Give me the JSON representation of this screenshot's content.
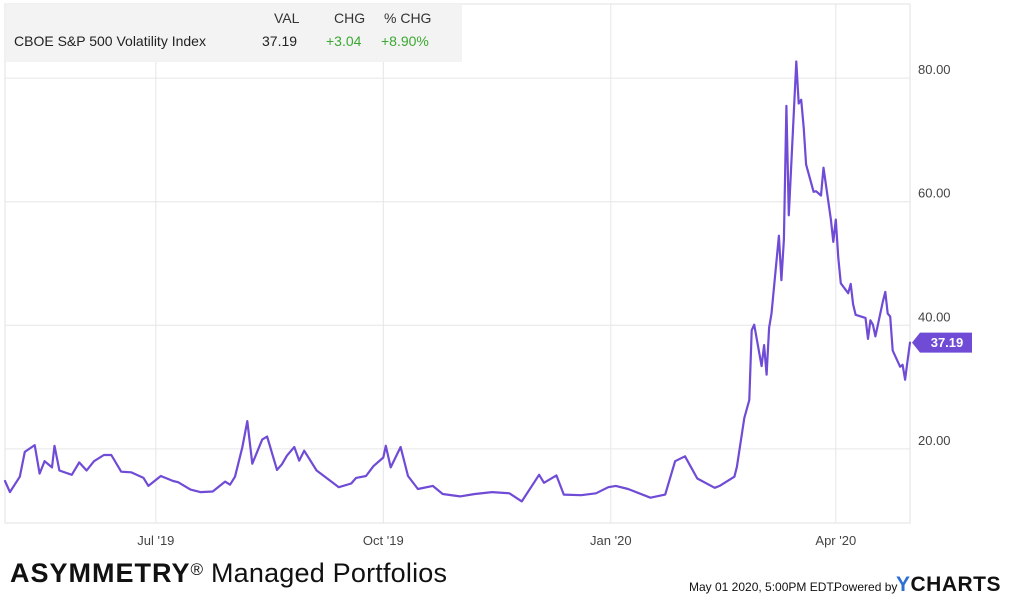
{
  "legend": {
    "headers": {
      "val": "VAL",
      "chg": "CHG",
      "pct": "% CHG"
    },
    "series_name": "CBOE S&P 500 Volatility Index",
    "val": "37.19",
    "chg": "+3.04",
    "pct": "+8.90%"
  },
  "footer": {
    "brand_bold": "ASYMMETRY",
    "brand_reg": "®",
    "brand_rest": " Managed Portfolios",
    "timestamp": "May 01 2020, 5:00PM EDT.",
    "powered_by": "Powered by",
    "ycharts_y": "Y",
    "ycharts_rest": "CHARTS"
  },
  "colors": {
    "line": "#6f4bd6",
    "positive": "#3ba831",
    "grid": "#e6e6e6"
  },
  "chart_data": {
    "type": "line",
    "title": "",
    "xlabel": "",
    "ylabel": "",
    "ylim": [
      8,
      92
    ],
    "yticks": [
      20,
      40,
      60,
      80
    ],
    "ytick_labels": [
      "20.00",
      "40.00",
      "60.00",
      "80.00"
    ],
    "xticks": [
      {
        "date": "2019-07-01",
        "label": "Jul '19"
      },
      {
        "date": "2019-10-01",
        "label": "Oct '19"
      },
      {
        "date": "2020-01-01",
        "label": "Jan '20"
      },
      {
        "date": "2020-04-01",
        "label": "Apr '20"
      }
    ],
    "x_range": [
      "2019-05-01",
      "2020-05-01"
    ],
    "grid": true,
    "last_value_label": "37.19",
    "series": [
      {
        "points": [
          [
            "2019-05-01",
            14.8
          ],
          [
            "2019-05-03",
            13.0
          ],
          [
            "2019-05-07",
            15.5
          ],
          [
            "2019-05-09",
            19.5
          ],
          [
            "2019-05-13",
            20.6
          ],
          [
            "2019-05-15",
            16.0
          ],
          [
            "2019-05-17",
            18.0
          ],
          [
            "2019-05-20",
            17.0
          ],
          [
            "2019-05-21",
            20.5
          ],
          [
            "2019-05-23",
            16.5
          ],
          [
            "2019-05-28",
            15.8
          ],
          [
            "2019-05-31",
            17.8
          ],
          [
            "2019-06-03",
            16.5
          ],
          [
            "2019-06-06",
            18.0
          ],
          [
            "2019-06-10",
            19.0
          ],
          [
            "2019-06-13",
            19.0
          ],
          [
            "2019-06-17",
            16.3
          ],
          [
            "2019-06-21",
            16.2
          ],
          [
            "2019-06-26",
            15.3
          ],
          [
            "2019-06-28",
            14.0
          ],
          [
            "2019-07-03",
            15.6
          ],
          [
            "2019-07-08",
            14.8
          ],
          [
            "2019-07-10",
            14.6
          ],
          [
            "2019-07-15",
            13.4
          ],
          [
            "2019-07-19",
            13.0
          ],
          [
            "2019-07-24",
            13.1
          ],
          [
            "2019-07-29",
            14.7
          ],
          [
            "2019-07-31",
            14.2
          ],
          [
            "2019-08-02",
            15.5
          ],
          [
            "2019-08-05",
            20.3
          ],
          [
            "2019-08-07",
            24.5
          ],
          [
            "2019-08-09",
            17.6
          ],
          [
            "2019-08-13",
            21.5
          ],
          [
            "2019-08-15",
            22.0
          ],
          [
            "2019-08-19",
            16.6
          ],
          [
            "2019-08-21",
            17.5
          ],
          [
            "2019-08-23",
            18.9
          ],
          [
            "2019-08-26",
            20.3
          ],
          [
            "2019-08-28",
            18.1
          ],
          [
            "2019-08-30",
            19.7
          ],
          [
            "2019-09-04",
            16.5
          ],
          [
            "2019-09-09",
            15.0
          ],
          [
            "2019-09-13",
            13.8
          ],
          [
            "2019-09-18",
            14.4
          ],
          [
            "2019-09-20",
            15.3
          ],
          [
            "2019-09-24",
            15.6
          ],
          [
            "2019-09-27",
            17.2
          ],
          [
            "2019-10-01",
            18.6
          ],
          [
            "2019-10-02",
            20.5
          ],
          [
            "2019-10-04",
            17.0
          ],
          [
            "2019-10-08",
            20.3
          ],
          [
            "2019-10-11",
            15.6
          ],
          [
            "2019-10-15",
            13.5
          ],
          [
            "2019-10-21",
            14.0
          ],
          [
            "2019-10-25",
            12.7
          ],
          [
            "2019-11-01",
            12.3
          ],
          [
            "2019-11-07",
            12.7
          ],
          [
            "2019-11-14",
            13.0
          ],
          [
            "2019-11-21",
            12.8
          ],
          [
            "2019-11-26",
            11.5
          ],
          [
            "2019-12-03",
            15.8
          ],
          [
            "2019-12-05",
            14.5
          ],
          [
            "2019-12-10",
            15.7
          ],
          [
            "2019-12-13",
            12.6
          ],
          [
            "2019-12-20",
            12.5
          ],
          [
            "2019-12-26",
            12.8
          ],
          [
            "2019-12-31",
            13.8
          ],
          [
            "2020-01-03",
            14.0
          ],
          [
            "2020-01-08",
            13.5
          ],
          [
            "2020-01-17",
            12.1
          ],
          [
            "2020-01-23",
            12.6
          ],
          [
            "2020-01-27",
            18.0
          ],
          [
            "2020-01-31",
            18.8
          ],
          [
            "2020-02-05",
            15.2
          ],
          [
            "2020-02-12",
            13.7
          ],
          [
            "2020-02-14",
            14.0
          ],
          [
            "2020-02-20",
            15.5
          ],
          [
            "2020-02-21",
            17.1
          ],
          [
            "2020-02-24",
            25.0
          ],
          [
            "2020-02-26",
            27.9
          ],
          [
            "2020-02-27",
            39.2
          ],
          [
            "2020-02-28",
            40.1
          ],
          [
            "2020-03-02",
            33.4
          ],
          [
            "2020-03-03",
            36.8
          ],
          [
            "2020-03-04",
            32.0
          ],
          [
            "2020-03-05",
            39.6
          ],
          [
            "2020-03-06",
            41.9
          ],
          [
            "2020-03-09",
            54.5
          ],
          [
            "2020-03-10",
            47.3
          ],
          [
            "2020-03-11",
            53.9
          ],
          [
            "2020-03-12",
            75.5
          ],
          [
            "2020-03-13",
            57.8
          ],
          [
            "2020-03-16",
            82.7
          ],
          [
            "2020-03-17",
            75.9
          ],
          [
            "2020-03-18",
            76.5
          ],
          [
            "2020-03-19",
            72.0
          ],
          [
            "2020-03-20",
            66.0
          ],
          [
            "2020-03-23",
            61.6
          ],
          [
            "2020-03-24",
            61.7
          ],
          [
            "2020-03-26",
            61.0
          ],
          [
            "2020-03-27",
            65.5
          ],
          [
            "2020-03-30",
            57.1
          ],
          [
            "2020-03-31",
            53.5
          ],
          [
            "2020-04-01",
            57.1
          ],
          [
            "2020-04-02",
            50.9
          ],
          [
            "2020-04-03",
            46.8
          ],
          [
            "2020-04-06",
            45.2
          ],
          [
            "2020-04-07",
            46.7
          ],
          [
            "2020-04-08",
            43.4
          ],
          [
            "2020-04-09",
            41.7
          ],
          [
            "2020-04-13",
            41.2
          ],
          [
            "2020-04-14",
            37.8
          ],
          [
            "2020-04-15",
            40.8
          ],
          [
            "2020-04-16",
            40.1
          ],
          [
            "2020-04-17",
            38.2
          ],
          [
            "2020-04-20",
            43.8
          ],
          [
            "2020-04-21",
            45.4
          ],
          [
            "2020-04-22",
            41.9
          ],
          [
            "2020-04-23",
            41.4
          ],
          [
            "2020-04-24",
            35.9
          ],
          [
            "2020-04-27",
            33.3
          ],
          [
            "2020-04-28",
            33.6
          ],
          [
            "2020-04-29",
            31.2
          ],
          [
            "2020-04-30",
            34.2
          ],
          [
            "2020-05-01",
            37.2
          ]
        ]
      }
    ]
  }
}
